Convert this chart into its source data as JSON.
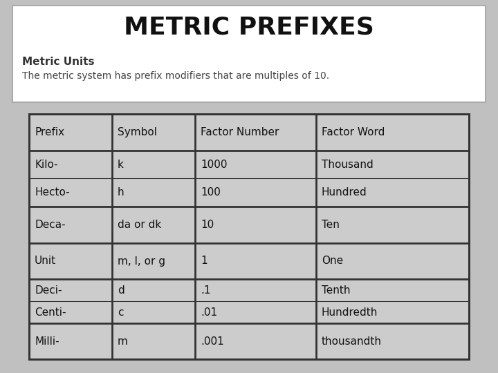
{
  "title": "METRIC PREFIXES",
  "subtitle": "Metric Units",
  "description": "The metric system has prefix modifiers that are multiples of 10.",
  "bg_color": "#c0c0c0",
  "header_bg": "#ffffff",
  "table_cell_bg": "#cccccc",
  "table_border": "#333333",
  "columns": [
    "Prefix",
    "Symbol",
    "Factor Number",
    "Factor Word"
  ],
  "rows": [
    [
      "Kilo-",
      "k",
      "1000",
      "Thousand"
    ],
    [
      "Hecto-",
      "h",
      "100",
      "Hundred"
    ],
    [
      "Deca-",
      "da or dk",
      "10",
      "Ten"
    ],
    [
      "Unit",
      "m, l, or g",
      "1",
      "One"
    ],
    [
      "Deci-",
      "d",
      ".1",
      "Tenth"
    ],
    [
      "Centi-",
      "c",
      ".01",
      "Hundredth"
    ],
    [
      "Milli-",
      "m",
      ".001",
      "thousandth"
    ]
  ],
  "title_fontsize": 26,
  "subtitle_fontsize": 11,
  "desc_fontsize": 10,
  "cell_fontsize": 11,
  "fig_width": 7.2,
  "fig_height": 5.4,
  "dpi": 100
}
